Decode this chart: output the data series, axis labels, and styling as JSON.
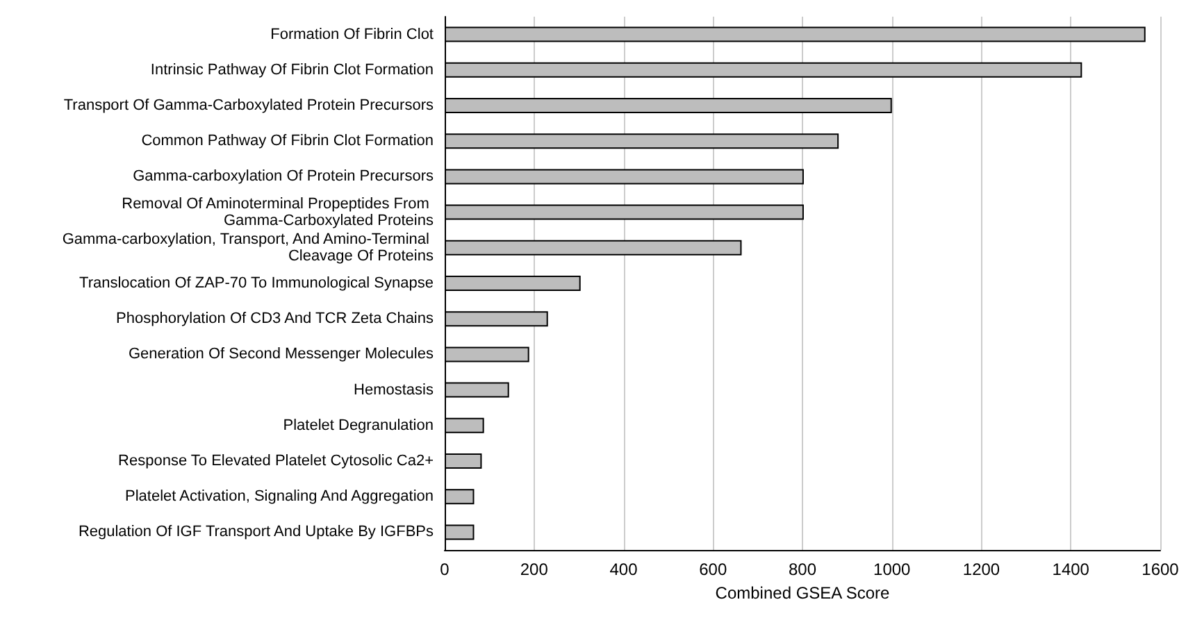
{
  "chart_data": {
    "type": "bar",
    "orientation": "horizontal",
    "xlabel": "Combined GSEA Score",
    "categories": [
      "Formation Of Fibrin Clot",
      "Intrinsic Pathway Of Fibrin Clot Formation",
      "Transport Of Gamma-Carboxylated Protein Precursors",
      "Common Pathway Of Fibrin Clot Formation",
      "Gamma-carboxylation Of Protein Precursors",
      "Removal Of Aminoterminal Propeptides From Gamma-Carboxylated Proteins",
      "Gamma-carboxylation, Transport, And Amino-Terminal Cleavage Of Proteins",
      "Translocation Of ZAP-70 To Immunological Synapse",
      "Phosphorylation Of CD3 And TCR Zeta Chains",
      "Generation Of Second Messenger Molecules",
      "Hemostasis",
      "Platelet Degranulation",
      "Response To Elevated Platelet Cytosolic Ca2+",
      "Platelet Activation, Signaling And Aggregation",
      "Regulation Of IGF Transport And Uptake By IGFBPs"
    ],
    "values": [
      1567,
      1425,
      1000,
      881,
      803,
      803,
      664,
      304,
      231,
      189,
      144,
      88,
      83,
      66,
      66
    ],
    "color": "#bdbdbd",
    "xlim": [
      0,
      1600
    ],
    "xticks": [
      0,
      200,
      400,
      600,
      800,
      1000,
      1200,
      1400,
      1600
    ],
    "grid": "x"
  }
}
